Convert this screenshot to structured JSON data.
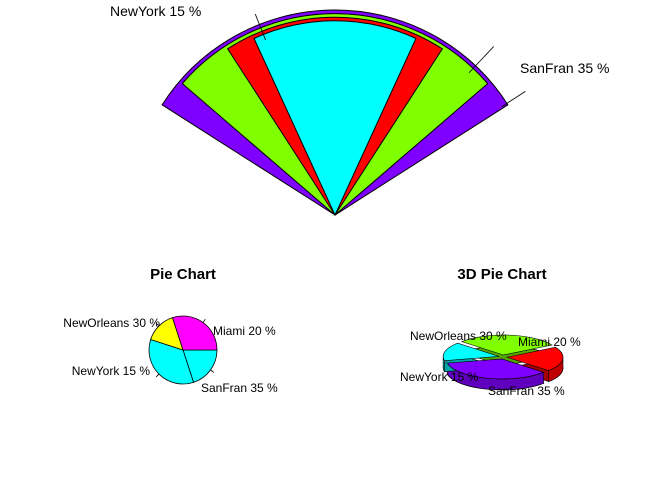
{
  "chart_data": [
    {
      "type": "pie",
      "variant": "fan",
      "categories": [
        "NewYork",
        "SanFran",
        "Miami",
        "NewOrleans"
      ],
      "values": [
        15,
        35,
        20,
        30
      ],
      "labels": [
        "NewYork  15 %",
        "SanFran  35 %",
        "Miami  20 %",
        "NewOrleans  30 %"
      ],
      "colors": [
        "#00FFFF",
        "#8000FF",
        "#FF0000",
        "#80FF00"
      ],
      "title": ""
    },
    {
      "type": "pie",
      "title": "Pie Chart",
      "categories": [
        "Miami",
        "SanFran",
        "NewYork",
        "NewOrleans"
      ],
      "values": [
        20,
        35,
        15,
        30
      ],
      "labels": [
        "Miami  20 %",
        "SanFran  35 %",
        "NewYork  15 %",
        "NewOrleans  30 %"
      ],
      "colors": [
        "#00FFFF",
        "#00FFFF",
        "#FFFF00",
        "#FF00FF"
      ]
    },
    {
      "type": "pie",
      "variant": "3d",
      "title": "3D Pie Chart",
      "categories": [
        "Miami",
        "SanFran",
        "NewYork",
        "NewOrleans"
      ],
      "values": [
        20,
        35,
        15,
        30
      ],
      "labels": [
        "Miami  20 %",
        "SanFran  35 %",
        "NewYork  15 %",
        "NewOrleans  30 %"
      ],
      "colors": [
        "#FF0000",
        "#8000FF",
        "#00FFFF",
        "#80FF00"
      ]
    }
  ]
}
